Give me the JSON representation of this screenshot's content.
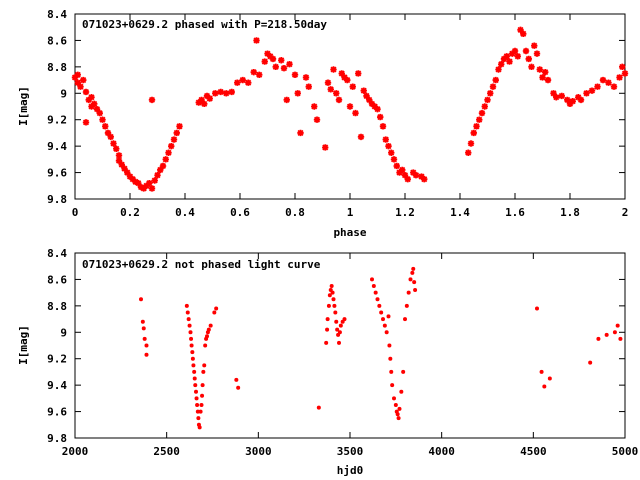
{
  "chart_data": [
    {
      "type": "scatter",
      "title": "071023+0629.2 phased with P=218.50day",
      "xlabel": "phase",
      "ylabel": "I[mag]",
      "xlim": [
        0,
        2
      ],
      "ylim": [
        9.8,
        8.4
      ],
      "y_inverted": true,
      "x_ticks": [
        "0",
        "0.2",
        "0.4",
        "0.6",
        "0.8",
        "1",
        "1.2",
        "1.4",
        "1.6",
        "1.8",
        "2"
      ],
      "y_ticks": [
        "8.4",
        "8.6",
        "8.8",
        "9",
        "9.2",
        "9.4",
        "9.6",
        "9.8"
      ],
      "grid": false,
      "marker": "star",
      "color": "#ff0000",
      "points": [
        [
          0.0,
          8.88
        ],
        [
          0.01,
          8.92
        ],
        [
          0.01,
          8.86
        ],
        [
          0.02,
          8.95
        ],
        [
          0.03,
          8.9
        ],
        [
          0.04,
          9.22
        ],
        [
          0.04,
          8.99
        ],
        [
          0.05,
          9.05
        ],
        [
          0.06,
          9.03
        ],
        [
          0.06,
          9.1
        ],
        [
          0.07,
          9.08
        ],
        [
          0.08,
          9.12
        ],
        [
          0.09,
          9.15
        ],
        [
          0.1,
          9.2
        ],
        [
          0.11,
          9.25
        ],
        [
          0.12,
          9.3
        ],
        [
          0.13,
          9.33
        ],
        [
          0.14,
          9.38
        ],
        [
          0.15,
          9.42
        ],
        [
          0.16,
          9.47
        ],
        [
          0.16,
          9.51
        ],
        [
          0.17,
          9.54
        ],
        [
          0.18,
          9.57
        ],
        [
          0.19,
          9.6
        ],
        [
          0.2,
          9.63
        ],
        [
          0.21,
          9.65
        ],
        [
          0.22,
          9.67
        ],
        [
          0.23,
          9.68
        ],
        [
          0.24,
          9.71
        ],
        [
          0.25,
          9.72
        ],
        [
          0.26,
          9.7
        ],
        [
          0.27,
          9.68
        ],
        [
          0.28,
          9.05
        ],
        [
          0.28,
          9.72
        ],
        [
          0.29,
          9.66
        ],
        [
          0.3,
          9.62
        ],
        [
          0.31,
          9.58
        ],
        [
          0.32,
          9.55
        ],
        [
          0.33,
          9.5
        ],
        [
          0.34,
          9.45
        ],
        [
          0.35,
          9.4
        ],
        [
          0.36,
          9.35
        ],
        [
          0.37,
          9.3
        ],
        [
          0.38,
          9.25
        ],
        [
          0.45,
          9.07
        ],
        [
          0.46,
          9.05
        ],
        [
          0.47,
          9.08
        ],
        [
          0.48,
          9.02
        ],
        [
          0.49,
          9.04
        ],
        [
          0.51,
          9.0
        ],
        [
          0.53,
          8.99
        ],
        [
          0.55,
          9.0
        ],
        [
          0.57,
          8.99
        ],
        [
          0.59,
          8.92
        ],
        [
          0.61,
          8.9
        ],
        [
          0.63,
          8.92
        ],
        [
          0.65,
          8.84
        ],
        [
          0.66,
          8.6
        ],
        [
          0.67,
          8.86
        ],
        [
          0.69,
          8.76
        ],
        [
          0.7,
          8.7
        ],
        [
          0.71,
          8.72
        ],
        [
          0.72,
          8.74
        ],
        [
          0.73,
          8.8
        ],
        [
          0.75,
          8.75
        ],
        [
          0.76,
          8.81
        ],
        [
          0.77,
          9.05
        ],
        [
          0.78,
          8.78
        ],
        [
          0.8,
          8.86
        ],
        [
          0.81,
          9.0
        ],
        [
          0.82,
          9.3
        ],
        [
          0.84,
          8.88
        ],
        [
          0.85,
          8.95
        ],
        [
          0.87,
          9.1
        ],
        [
          0.88,
          9.2
        ],
        [
          0.91,
          9.41
        ],
        [
          0.92,
          8.92
        ],
        [
          0.93,
          8.97
        ],
        [
          0.94,
          8.82
        ],
        [
          0.95,
          9.0
        ],
        [
          0.96,
          9.05
        ],
        [
          0.97,
          8.85
        ],
        [
          0.98,
          8.88
        ],
        [
          0.99,
          8.9
        ],
        [
          1.0,
          9.1
        ],
        [
          1.01,
          8.95
        ],
        [
          1.02,
          9.15
        ],
        [
          1.03,
          8.85
        ],
        [
          1.04,
          9.33
        ],
        [
          1.05,
          8.98
        ],
        [
          1.06,
          9.02
        ],
        [
          1.07,
          9.05
        ],
        [
          1.08,
          9.08
        ],
        [
          1.09,
          9.1
        ],
        [
          1.1,
          9.12
        ],
        [
          1.11,
          9.18
        ],
        [
          1.12,
          9.25
        ],
        [
          1.13,
          9.35
        ],
        [
          1.14,
          9.4
        ],
        [
          1.15,
          9.45
        ],
        [
          1.16,
          9.5
        ],
        [
          1.17,
          9.55
        ],
        [
          1.18,
          9.6
        ],
        [
          1.19,
          9.58
        ],
        [
          1.2,
          9.62
        ],
        [
          1.21,
          9.65
        ],
        [
          1.23,
          9.6
        ],
        [
          1.24,
          9.62
        ],
        [
          1.26,
          9.63
        ],
        [
          1.27,
          9.65
        ],
        [
          1.43,
          9.45
        ],
        [
          1.44,
          9.38
        ],
        [
          1.45,
          9.3
        ],
        [
          1.46,
          9.25
        ],
        [
          1.47,
          9.2
        ],
        [
          1.48,
          9.15
        ],
        [
          1.49,
          9.1
        ],
        [
          1.5,
          9.05
        ],
        [
          1.51,
          9.0
        ],
        [
          1.52,
          8.95
        ],
        [
          1.53,
          8.9
        ],
        [
          1.54,
          8.82
        ],
        [
          1.55,
          8.78
        ],
        [
          1.56,
          8.74
        ],
        [
          1.57,
          8.72
        ],
        [
          1.58,
          8.76
        ],
        [
          1.59,
          8.7
        ],
        [
          1.6,
          8.68
        ],
        [
          1.61,
          8.72
        ],
        [
          1.62,
          8.52
        ],
        [
          1.63,
          8.55
        ],
        [
          1.64,
          8.68
        ],
        [
          1.65,
          8.74
        ],
        [
          1.66,
          8.8
        ],
        [
          1.67,
          8.64
        ],
        [
          1.68,
          8.7
        ],
        [
          1.69,
          8.82
        ],
        [
          1.7,
          8.88
        ],
        [
          1.71,
          8.84
        ],
        [
          1.72,
          8.9
        ],
        [
          1.74,
          9.0
        ],
        [
          1.75,
          9.03
        ],
        [
          1.77,
          9.02
        ],
        [
          1.79,
          9.05
        ],
        [
          1.8,
          9.08
        ],
        [
          1.81,
          9.06
        ],
        [
          1.83,
          9.03
        ],
        [
          1.84,
          9.05
        ],
        [
          1.86,
          9.0
        ],
        [
          1.88,
          8.98
        ],
        [
          1.9,
          8.95
        ],
        [
          1.92,
          8.9
        ],
        [
          1.94,
          8.92
        ],
        [
          1.96,
          8.95
        ],
        [
          1.98,
          8.88
        ],
        [
          1.99,
          8.8
        ],
        [
          2.0,
          8.85
        ]
      ]
    },
    {
      "type": "scatter",
      "title": "071023+0629.2 not phased light curve",
      "xlabel": "hjd0",
      "ylabel": "I[mag]",
      "xlim": [
        2000,
        5000
      ],
      "ylim": [
        9.8,
        8.4
      ],
      "y_inverted": true,
      "x_ticks": [
        "2000",
        "2500",
        "3000",
        "3500",
        "4000",
        "4500",
        "5000"
      ],
      "y_ticks": [
        "8.4",
        "8.6",
        "8.8",
        "9",
        "9.2",
        "9.4",
        "9.6",
        "9.8"
      ],
      "grid": false,
      "marker": "dot",
      "color": "#ff0000",
      "points": [
        [
          2360,
          8.75
        ],
        [
          2370,
          8.92
        ],
        [
          2375,
          8.97
        ],
        [
          2380,
          9.05
        ],
        [
          2390,
          9.1
        ],
        [
          2390,
          9.17
        ],
        [
          2610,
          8.8
        ],
        [
          2615,
          8.85
        ],
        [
          2620,
          8.9
        ],
        [
          2625,
          8.95
        ],
        [
          2630,
          9.0
        ],
        [
          2633,
          9.05
        ],
        [
          2636,
          9.1
        ],
        [
          2640,
          9.15
        ],
        [
          2643,
          9.2
        ],
        [
          2646,
          9.25
        ],
        [
          2650,
          9.3
        ],
        [
          2653,
          9.35
        ],
        [
          2656,
          9.4
        ],
        [
          2660,
          9.45
        ],
        [
          2663,
          9.5
        ],
        [
          2666,
          9.55
        ],
        [
          2670,
          9.6
        ],
        [
          2673,
          9.65
        ],
        [
          2676,
          9.7
        ],
        [
          2680,
          9.72
        ],
        [
          2685,
          9.6
        ],
        [
          2690,
          9.55
        ],
        [
          2693,
          9.48
        ],
        [
          2696,
          9.4
        ],
        [
          2700,
          9.3
        ],
        [
          2705,
          9.25
        ],
        [
          2710,
          9.1
        ],
        [
          2715,
          9.05
        ],
        [
          2720,
          9.03
        ],
        [
          2725,
          9.0
        ],
        [
          2730,
          8.98
        ],
        [
          2740,
          8.95
        ],
        [
          2760,
          8.85
        ],
        [
          2770,
          8.82
        ],
        [
          2880,
          9.36
        ],
        [
          2890,
          9.42
        ],
        [
          3330,
          9.57
        ],
        [
          3370,
          9.08
        ],
        [
          3375,
          8.98
        ],
        [
          3378,
          8.9
        ],
        [
          3385,
          8.8
        ],
        [
          3390,
          8.72
        ],
        [
          3395,
          8.68
        ],
        [
          3400,
          8.65
        ],
        [
          3405,
          8.7
        ],
        [
          3410,
          8.75
        ],
        [
          3415,
          8.8
        ],
        [
          3420,
          8.85
        ],
        [
          3425,
          8.92
        ],
        [
          3430,
          8.98
        ],
        [
          3435,
          9.02
        ],
        [
          3440,
          9.08
        ],
        [
          3445,
          9.0
        ],
        [
          3450,
          8.95
        ],
        [
          3460,
          8.92
        ],
        [
          3470,
          8.9
        ],
        [
          3620,
          8.6
        ],
        [
          3630,
          8.65
        ],
        [
          3640,
          8.7
        ],
        [
          3650,
          8.75
        ],
        [
          3660,
          8.8
        ],
        [
          3670,
          8.85
        ],
        [
          3680,
          8.9
        ],
        [
          3690,
          8.95
        ],
        [
          3700,
          9.0
        ],
        [
          3710,
          8.88
        ],
        [
          3715,
          9.1
        ],
        [
          3720,
          9.2
        ],
        [
          3725,
          9.3
        ],
        [
          3730,
          9.4
        ],
        [
          3740,
          9.5
        ],
        [
          3750,
          9.55
        ],
        [
          3755,
          9.6
        ],
        [
          3760,
          9.62
        ],
        [
          3765,
          9.65
        ],
        [
          3770,
          9.58
        ],
        [
          3780,
          9.45
        ],
        [
          3790,
          9.3
        ],
        [
          3800,
          8.9
        ],
        [
          3810,
          8.8
        ],
        [
          3820,
          8.7
        ],
        [
          3830,
          8.6
        ],
        [
          3840,
          8.55
        ],
        [
          3845,
          8.52
        ],
        [
          3850,
          8.62
        ],
        [
          3855,
          8.68
        ],
        [
          4520,
          8.82
        ],
        [
          4545,
          9.3
        ],
        [
          4560,
          9.41
        ],
        [
          4590,
          9.35
        ],
        [
          4810,
          9.23
        ],
        [
          4855,
          9.05
        ],
        [
          4900,
          9.02
        ],
        [
          4945,
          9.0
        ],
        [
          4960,
          8.95
        ],
        [
          4975,
          9.05
        ]
      ]
    }
  ]
}
